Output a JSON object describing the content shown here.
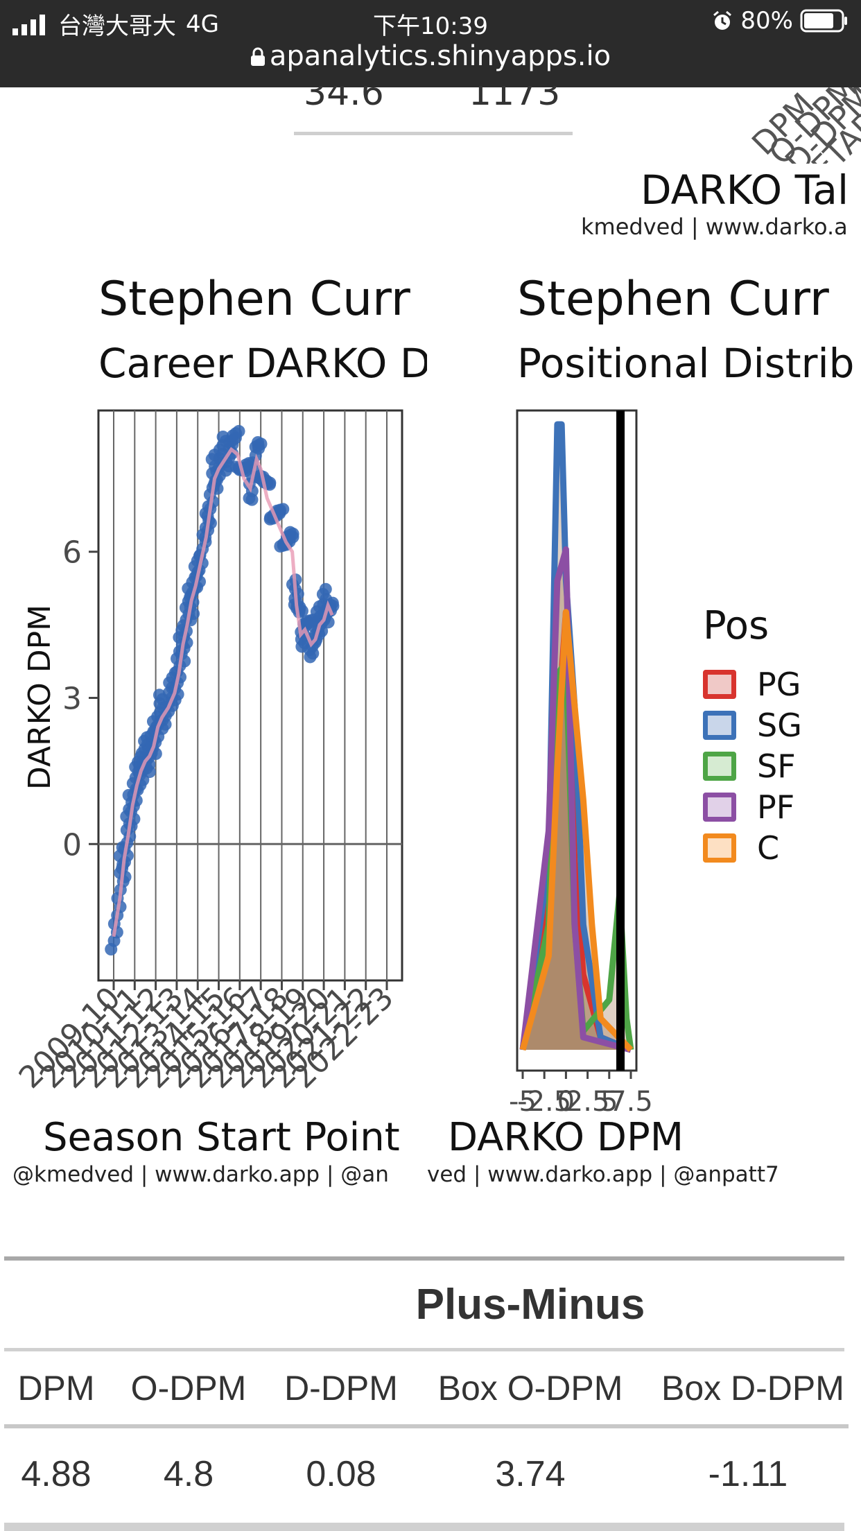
{
  "status_bar": {
    "carrier": "台灣大哥大",
    "network": "4G",
    "time": "下午10:39",
    "battery": "80%",
    "url": "apanalytics.shinyapps.io"
  },
  "top_partial": {
    "value_left": "34.6",
    "value_right": "1173",
    "right_title": "DARKO Tal",
    "right_credit": "kmedved | www.darko.a",
    "rotated_labels": [
      "DPM",
      "O-DPM",
      "D-DPM",
      "FTARa"
    ]
  },
  "left_plot": {
    "title": "Stephen Curr",
    "subtitle": "Career DARKO D",
    "ylabel": "DARKO DPM",
    "xlabel": "Season Start Point",
    "credit": "@kmedved | www.darko.app | @an"
  },
  "right_plot": {
    "title": "Stephen Curr",
    "subtitle": "Positional Distrib",
    "xlabel": "DARKO DPM",
    "credit": "ved | www.darko.app | @anpatt7",
    "legend_title": "Pos",
    "legend": [
      {
        "label": "PG",
        "border": "#d8342e",
        "fill": "#f0c9c7"
      },
      {
        "label": "SG",
        "border": "#3d72b8",
        "fill": "#c9d6ea"
      },
      {
        "label": "SF",
        "border": "#4ea546",
        "fill": "#d6ebd2"
      },
      {
        "label": "PF",
        "border": "#8c4fa4",
        "fill": "#e1d1e8"
      },
      {
        "label": "C",
        "border": "#f28a1e",
        "fill": "#fde0c3"
      }
    ]
  },
  "chart_data": [
    {
      "type": "scatter",
      "title": "Stephen Curr",
      "subtitle": "Career DARKO D",
      "xlabel": "Season Start Point",
      "ylabel": "DARKO DPM",
      "x_ticks": [
        "2009-10",
        "2010-11",
        "2011-12",
        "2012-13",
        "2013-14",
        "2014-15",
        "2015-16",
        "2016-17",
        "2017-18",
        "2018-19",
        "2019-20",
        "2020-21",
        "2021-22",
        "2022-23"
      ],
      "y_ticks": [
        0,
        3,
        6
      ],
      "ylim": [
        -2.8,
        8.9
      ],
      "series": [
        {
          "values": [
            [
              0.0,
              -1.8
            ],
            [
              0.3,
              -1.0
            ],
            [
              0.5,
              -0.2
            ],
            [
              0.7,
              0.3
            ],
            [
              0.9,
              0.9
            ],
            [
              1.1,
              1.3
            ],
            [
              1.3,
              1.6
            ],
            [
              1.5,
              1.8
            ],
            [
              1.7,
              1.9
            ],
            [
              1.9,
              2.1
            ],
            [
              2.1,
              2.5
            ],
            [
              2.3,
              2.7
            ],
            [
              2.6,
              2.9
            ],
            [
              2.9,
              3.2
            ],
            [
              3.1,
              3.6
            ],
            [
              3.3,
              4.2
            ],
            [
              3.5,
              4.6
            ],
            [
              3.7,
              5.1
            ],
            [
              3.9,
              5.4
            ],
            [
              4.1,
              5.8
            ],
            [
              4.4,
              6.4
            ],
            [
              4.6,
              7.0
            ],
            [
              4.8,
              7.6
            ],
            [
              5.0,
              7.8
            ],
            [
              5.3,
              8.0
            ],
            [
              5.6,
              8.2
            ],
            [
              5.9,
              8.1
            ],
            [
              6.2,
              7.6
            ],
            [
              6.5,
              7.4
            ],
            [
              6.8,
              8.0
            ],
            [
              7.0,
              7.8
            ],
            [
              7.3,
              7.2
            ],
            [
              7.6,
              6.9
            ],
            [
              7.9,
              6.6
            ],
            [
              8.2,
              6.3
            ],
            [
              8.5,
              6.1
            ],
            [
              8.7,
              5.0
            ],
            [
              8.9,
              4.4
            ],
            [
              9.1,
              4.5
            ],
            [
              9.4,
              4.2
            ],
            [
              9.6,
              4.3
            ],
            [
              9.8,
              4.6
            ],
            [
              10.0,
              4.7
            ],
            [
              10.2,
              5.0
            ],
            [
              10.4,
              4.8
            ]
          ]
        }
      ]
    },
    {
      "type": "area",
      "title": "Stephen Curr",
      "subtitle": "Positional Distrib",
      "xlabel": "DARKO DPM",
      "x_ticks": [
        "-5",
        "-2.5",
        "0",
        "2.5",
        "5",
        "7.5"
      ],
      "vertical_line_x": 6.3,
      "series": [
        {
          "name": "PG",
          "values": [
            [
              -5,
              0
            ],
            [
              -2,
              0.25
            ],
            [
              -1,
              0.5
            ],
            [
              0,
              0.7
            ],
            [
              1,
              0.3
            ],
            [
              2,
              0.12
            ],
            [
              4,
              0.02
            ],
            [
              7.5,
              0
            ]
          ]
        },
        {
          "name": "SG",
          "values": [
            [
              -5,
              0
            ],
            [
              -2,
              0.3
            ],
            [
              -1,
              1.0
            ],
            [
              -0.5,
              1.0
            ],
            [
              0,
              0.75
            ],
            [
              1,
              0.55
            ],
            [
              2,
              0.2
            ],
            [
              4,
              0.02
            ],
            [
              7.5,
              0
            ]
          ]
        },
        {
          "name": "SF",
          "values": [
            [
              -5,
              0
            ],
            [
              -2,
              0.2
            ],
            [
              -1,
              0.6
            ],
            [
              0,
              0.62
            ],
            [
              1,
              0.2
            ],
            [
              2,
              0.03
            ],
            [
              5,
              0.08
            ],
            [
              6.2,
              0.25
            ],
            [
              7,
              0.05
            ],
            [
              7.5,
              0
            ]
          ]
        },
        {
          "name": "PF",
          "values": [
            [
              -5,
              0
            ],
            [
              -2,
              0.35
            ],
            [
              -1,
              0.75
            ],
            [
              0,
              0.8
            ],
            [
              1,
              0.2
            ],
            [
              2,
              0.02
            ],
            [
              7.5,
              0
            ]
          ]
        },
        {
          "name": "C",
          "values": [
            [
              -5,
              0
            ],
            [
              -2,
              0.15
            ],
            [
              -1,
              0.45
            ],
            [
              0,
              0.7
            ],
            [
              1,
              0.55
            ],
            [
              2,
              0.4
            ],
            [
              3,
              0.2
            ],
            [
              4,
              0.05
            ],
            [
              7.5,
              0
            ]
          ]
        }
      ]
    }
  ],
  "table": {
    "title": "Plus-Minus",
    "columns": [
      "DPM",
      "O-DPM",
      "D-DPM",
      "Box O-DPM",
      "Box D-DPM"
    ],
    "rows": [
      [
        "4.88",
        "4.8",
        "0.08",
        "3.74",
        "-1.11"
      ]
    ]
  }
}
